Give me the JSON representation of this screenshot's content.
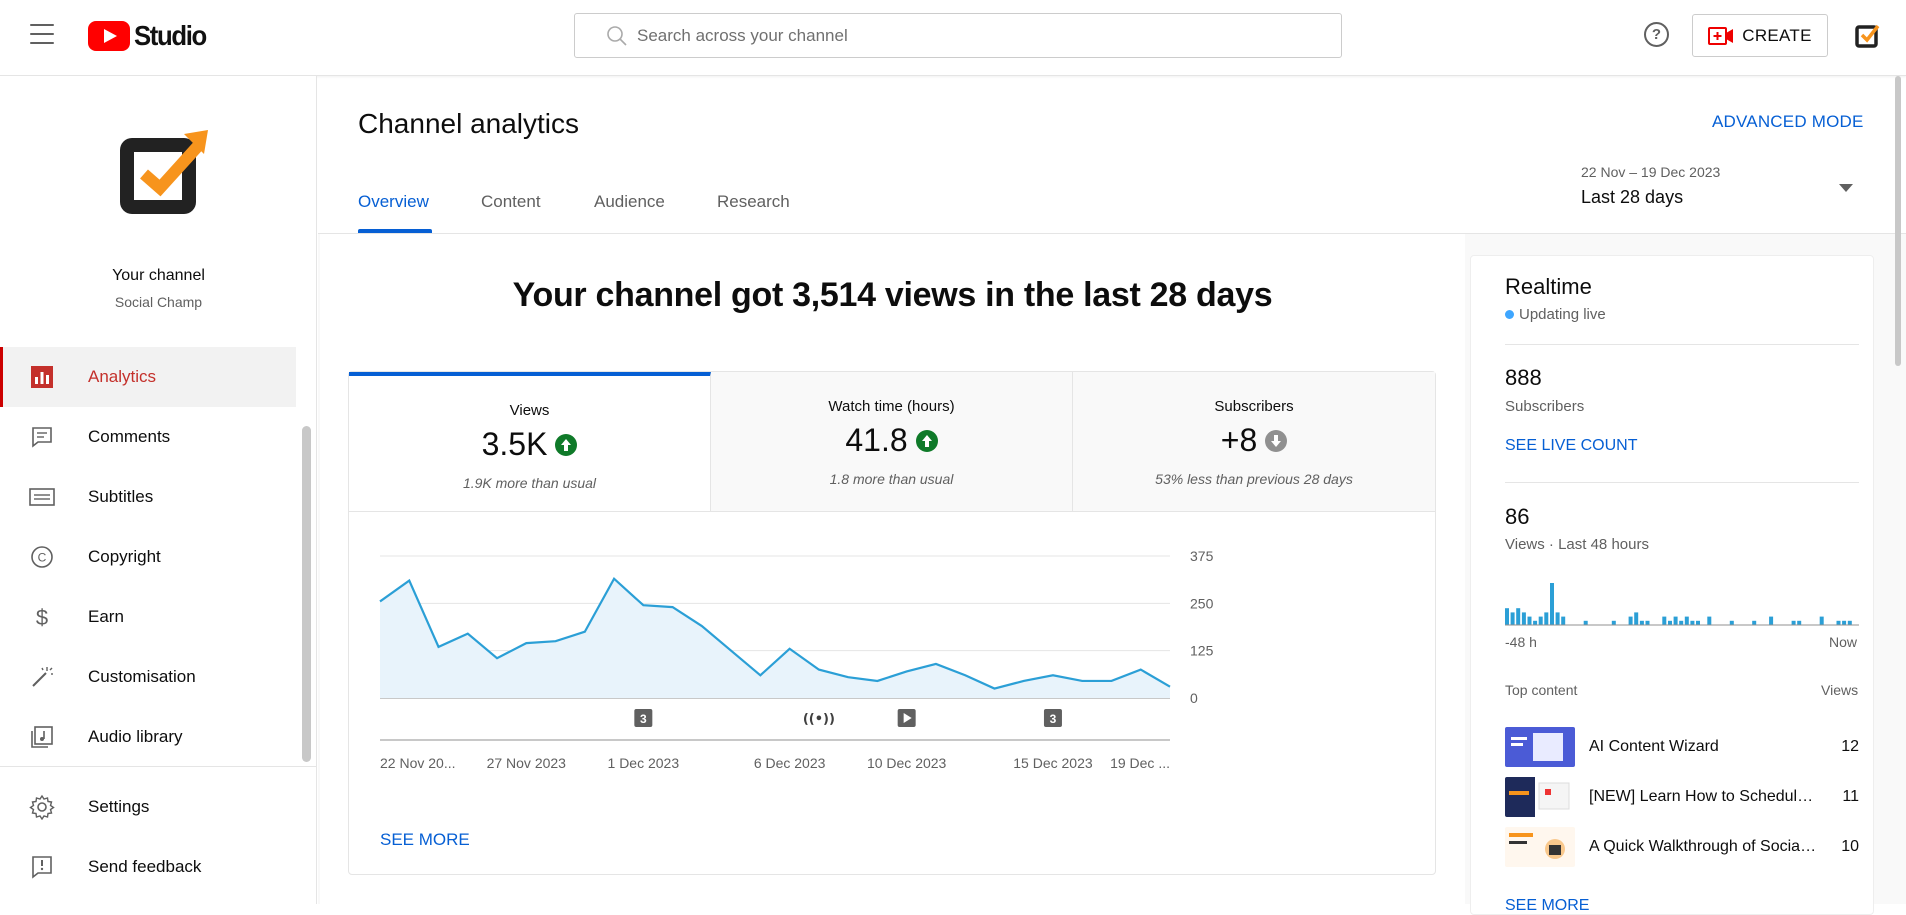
{
  "header": {
    "logo_text": "Studio",
    "search_placeholder": "Search across your channel",
    "create_label": "CREATE",
    "help_glyph": "?"
  },
  "sidebar": {
    "channel_name": "Your channel",
    "channel_sub": "Social Champ",
    "items": [
      {
        "label": "Analytics",
        "icon": "analytics-icon",
        "active": true
      },
      {
        "label": "Comments",
        "icon": "comments-icon"
      },
      {
        "label": "Subtitles",
        "icon": "subtitles-icon"
      },
      {
        "label": "Copyright",
        "icon": "copyright-icon"
      },
      {
        "label": "Earn",
        "icon": "dollar-icon"
      },
      {
        "label": "Customisation",
        "icon": "magic-wand-icon"
      },
      {
        "label": "Audio library",
        "icon": "audio-library-icon"
      }
    ],
    "bottom_items": [
      {
        "label": "Settings",
        "icon": "gear-icon"
      },
      {
        "label": "Send feedback",
        "icon": "feedback-icon"
      }
    ]
  },
  "main": {
    "title": "Channel analytics",
    "advanced_mode": "ADVANCED MODE",
    "tabs": [
      {
        "label": "Overview",
        "active": true
      },
      {
        "label": "Content"
      },
      {
        "label": "Audience"
      },
      {
        "label": "Research"
      }
    ],
    "date_range": "22 Nov – 19 Dec 2023",
    "date_label": "Last 28 days",
    "headline": "Your channel got 3,514 views in the last 28 days",
    "metrics": [
      {
        "label": "Views",
        "value": "3.5K",
        "trend": "up",
        "note": "1.9K more than usual"
      },
      {
        "label": "Watch time (hours)",
        "value": "41.8",
        "trend": "up",
        "note": "1.8 more than usual"
      },
      {
        "label": "Subscribers",
        "value": "+8",
        "trend": "down",
        "note": "53% less than previous 28 days"
      }
    ],
    "see_more": "SEE MORE"
  },
  "chart_data": {
    "type": "area",
    "x": [
      "22 Nov",
      "23 Nov",
      "24 Nov",
      "25 Nov",
      "26 Nov",
      "27 Nov",
      "28 Nov",
      "29 Nov",
      "30 Nov",
      "1 Dec",
      "2 Dec",
      "3 Dec",
      "4 Dec",
      "5 Dec",
      "6 Dec",
      "7 Dec",
      "8 Dec",
      "9 Dec",
      "10 Dec",
      "11 Dec",
      "12 Dec",
      "13 Dec",
      "14 Dec",
      "15 Dec",
      "16 Dec",
      "17 Dec",
      "18 Dec",
      "19 Dec"
    ],
    "series": [
      {
        "values": [
          255,
          310,
          135,
          170,
          105,
          145,
          150,
          175,
          315,
          245,
          240,
          190,
          125,
          60,
          130,
          75,
          55,
          45,
          70,
          90,
          60,
          25,
          45,
          60,
          45,
          45,
          75,
          30
        ]
      }
    ],
    "y_ticks": [
      0,
      125,
      250,
      375
    ],
    "ylim": [
      0,
      375
    ],
    "x_tick_labels": [
      "22 Nov 20...",
      "27 Nov 2023",
      "1 Dec 2023",
      "6 Dec 2023",
      "10 Dec 2023",
      "15 Dec 2023",
      "19 Dec ..."
    ],
    "x_tick_index": [
      0,
      5,
      9,
      14,
      18,
      23,
      27
    ],
    "markers": [
      {
        "index": 9,
        "kind": "count",
        "label": "3"
      },
      {
        "index": 15,
        "kind": "live",
        "label": "((•))"
      },
      {
        "index": 18,
        "kind": "video",
        "label": "play"
      },
      {
        "index": 23,
        "kind": "count",
        "label": "3"
      }
    ],
    "grid": true,
    "color": "#2b9fd6"
  },
  "realtime": {
    "title": "Realtime",
    "live_text": "Updating live",
    "subscribers_value": "888",
    "subscribers_label": "Subscribers",
    "see_live_count": "SEE LIVE COUNT",
    "views_value": "86",
    "views_label": "Views · Last 48 hours",
    "bars": [
      4,
      3,
      4,
      3,
      2,
      1,
      2,
      3,
      10,
      3,
      2,
      0,
      0,
      0,
      1,
      0,
      0,
      0,
      0,
      1,
      0,
      0,
      2,
      3,
      1,
      1,
      0,
      0,
      2,
      1,
      2,
      1,
      2,
      1,
      1,
      0,
      2,
      0,
      0,
      0,
      1,
      0,
      0,
      0,
      1,
      0,
      0,
      2,
      0,
      0,
      0,
      1,
      1,
      0,
      0,
      0,
      2,
      0,
      0,
      1,
      1,
      1,
      0
    ],
    "axis_left": "-48 h",
    "axis_right": "Now",
    "top_content_label": "Top content",
    "views_column": "Views",
    "top_content": [
      {
        "title": "AI Content Wizard",
        "views": "12"
      },
      {
        "title": "[NEW] Learn How to Schedule Posts",
        "views": "11"
      },
      {
        "title": "A Quick Walkthrough of Social Champ",
        "views": "10"
      }
    ],
    "see_more": "SEE MORE"
  },
  "colors": {
    "accent": "#065fd4",
    "brand_red": "#ff0000",
    "active_nav": "#c4302b",
    "up_green": "#0f7a29",
    "down_grey": "#909090",
    "chart_line": "#2b9fd6"
  }
}
